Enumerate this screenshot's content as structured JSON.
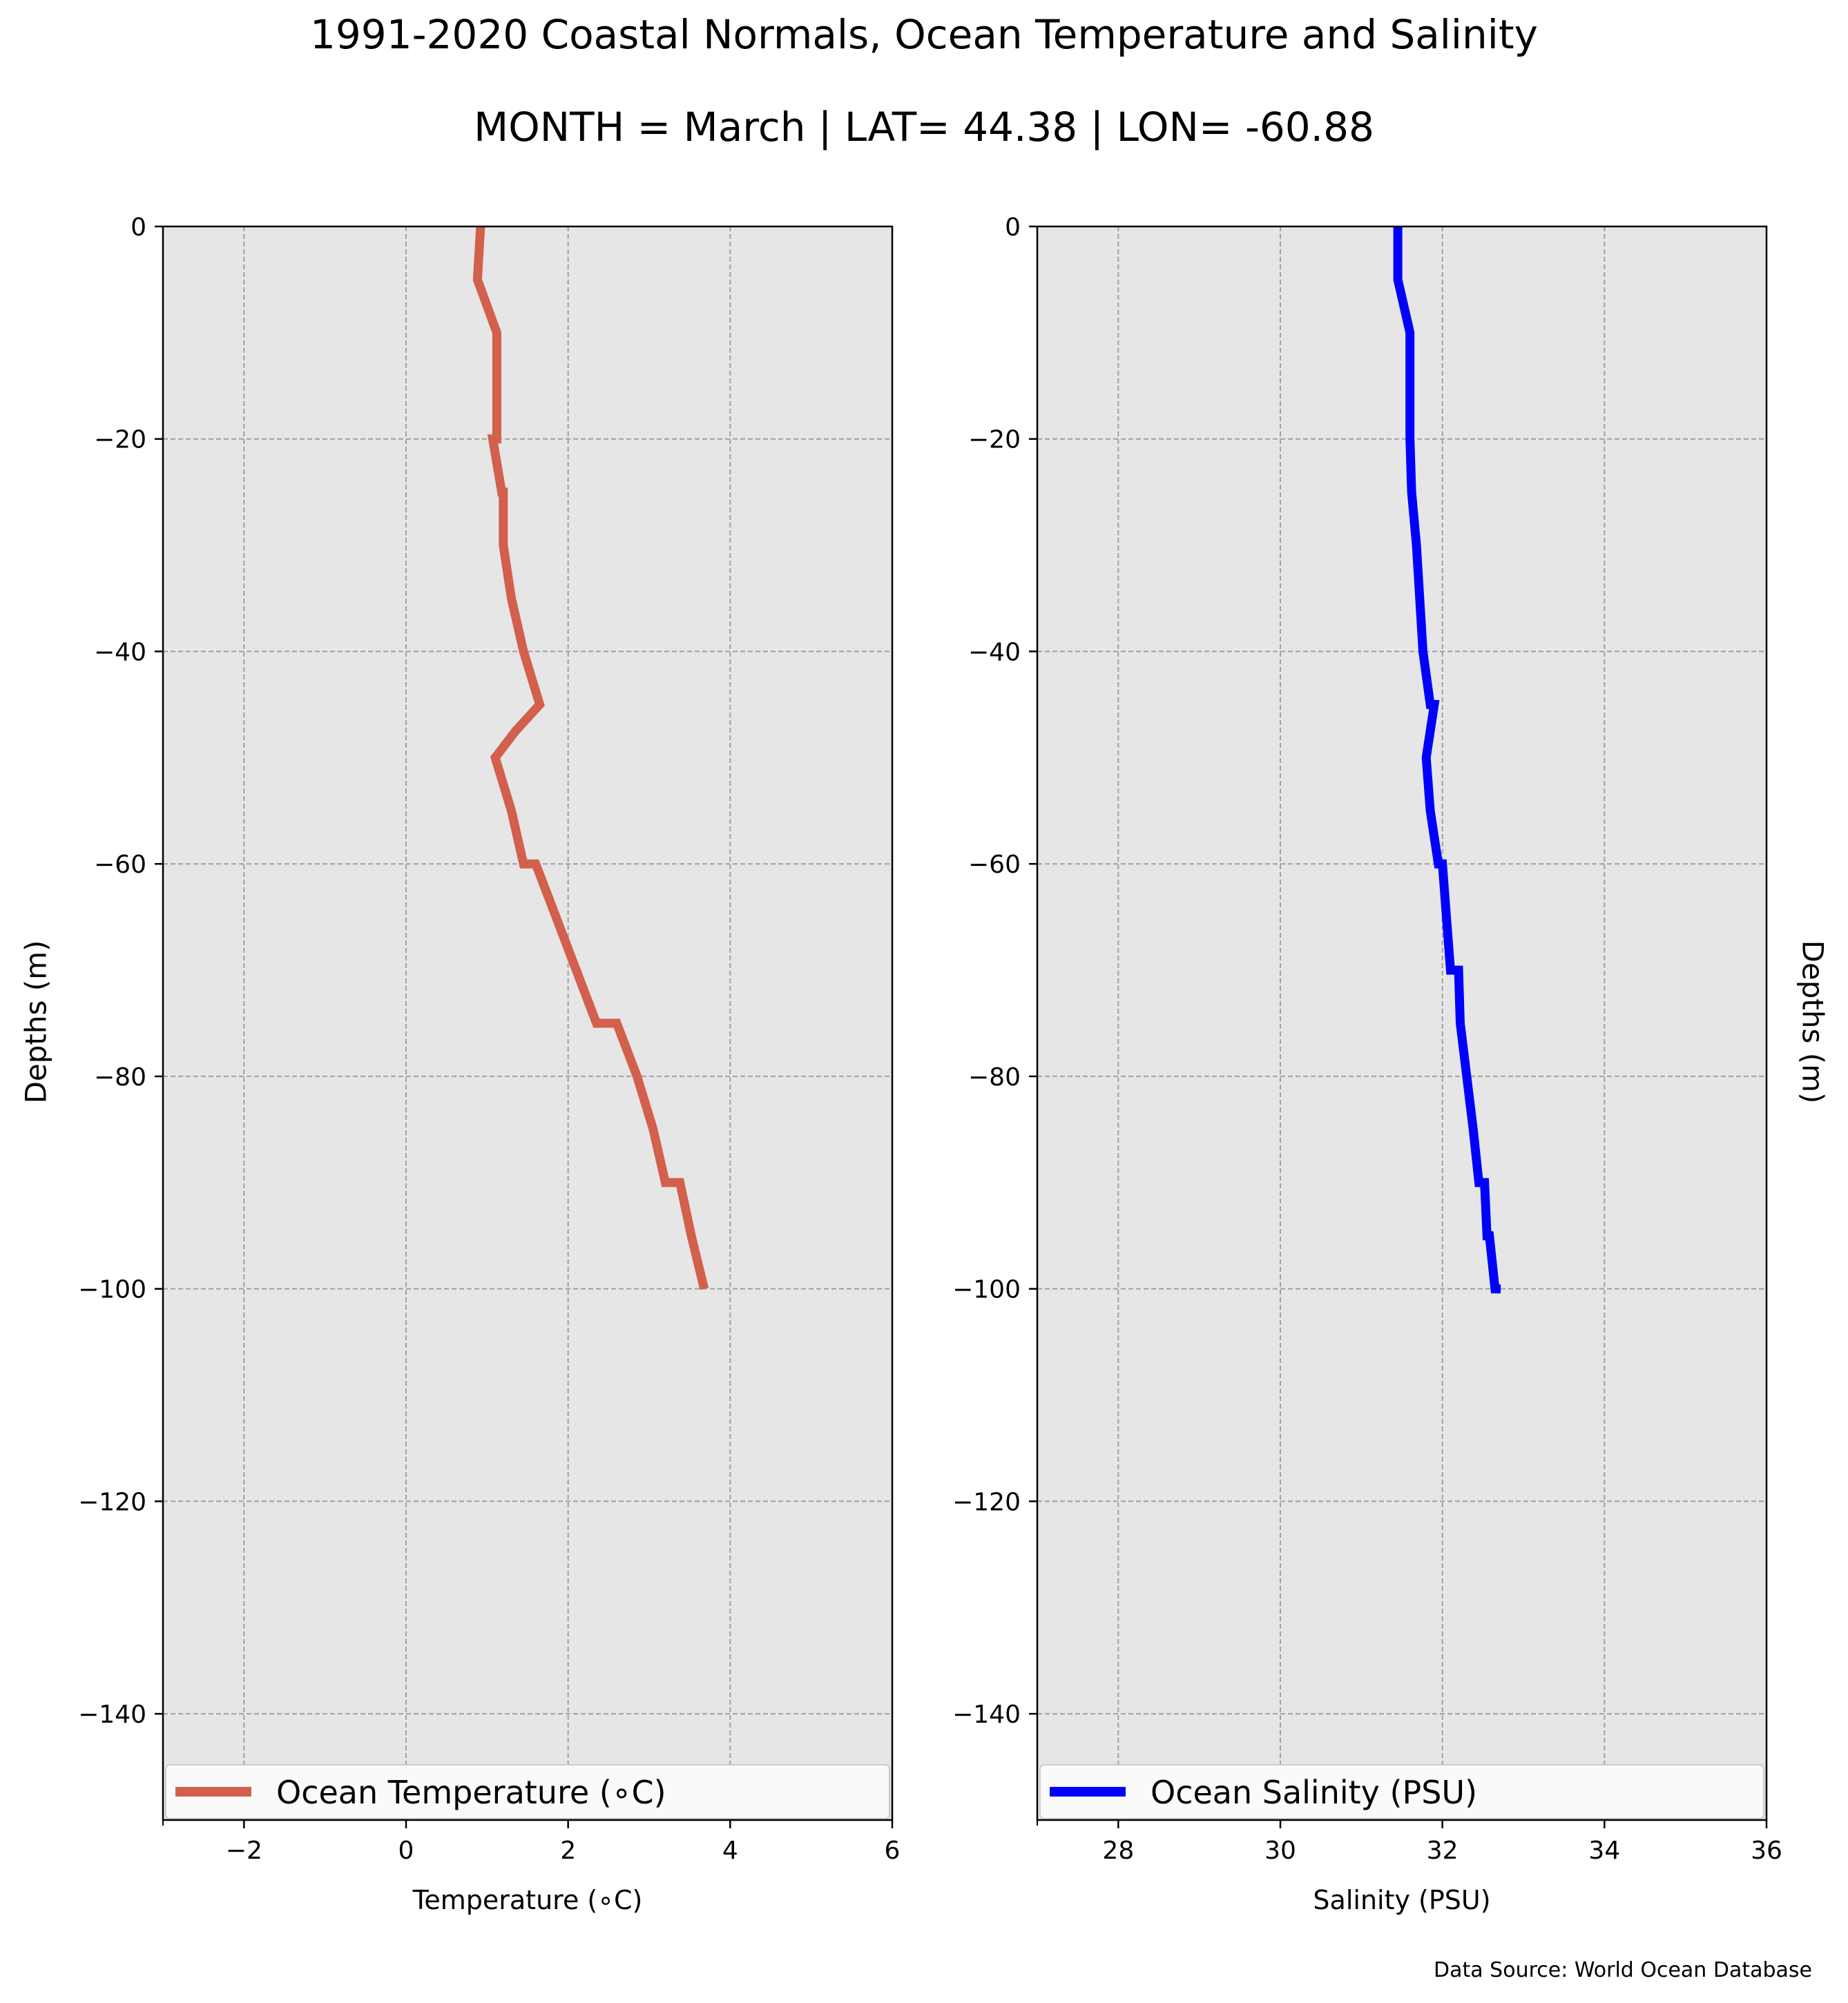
{
  "title": {
    "line1": "1991-2020 Coastal Normals, Ocean Temperature and Salinity",
    "line2": "MONTH = March | LAT= 44.38 | LON= -60.88"
  },
  "ylabel_left": "Depths (m)",
  "ylabel_right": "Depths (m)",
  "source_note": "Data Source: World Ocean Database",
  "colors": {
    "temperature_line": "#d35f4d",
    "salinity_line": "#0000ff",
    "plot_background": "#e6e6e6",
    "grid": "#a0a0a0"
  },
  "chart_data": [
    {
      "type": "line",
      "xlabel": "Temperature ($^\\circ$C)",
      "xlabel_display": "Temperature (∘C)",
      "ylabel": "Depths (m)",
      "xlim": [
        -3,
        6
      ],
      "ylim": [
        -150,
        0
      ],
      "xticks": [
        -2,
        0,
        2,
        4,
        6
      ],
      "xtick_labels": [
        "−2",
        "0",
        "2",
        "4",
        "6"
      ],
      "yticks": [
        0,
        -20,
        -40,
        -60,
        -80,
        -100,
        -120,
        -140
      ],
      "ytick_labels": [
        "0",
        "−20",
        "−40",
        "−60",
        "−80",
        "−100",
        "−120",
        "−140"
      ],
      "grid": true,
      "legend_position": "lower center",
      "series": [
        {
          "name": "Ocean Temperature (∘C)",
          "color": "#d35f4d",
          "x": [
            0.92,
            0.88,
            1.12,
            1.12,
            1.12,
            1.12,
            1.07,
            1.18,
            1.2,
            1.2,
            1.3,
            1.45,
            1.65,
            1.35,
            1.1,
            1.3,
            1.45,
            1.6,
            1.85,
            2.1,
            2.35,
            2.6,
            2.85,
            3.05,
            3.2,
            3.38,
            3.52,
            3.68
          ],
          "y": [
            0,
            -5,
            -10,
            -15,
            -20,
            -20,
            -20,
            -25,
            -25,
            -30,
            -35,
            -40,
            -45,
            -47.5,
            -50,
            -55,
            -60,
            -60,
            -65,
            -70,
            -75,
            -75,
            -80,
            -85,
            -90,
            -90,
            -95,
            -100
          ]
        }
      ]
    },
    {
      "type": "line",
      "xlabel": "Salinity (PSU)",
      "ylabel": "Depths (m)",
      "xlim": [
        27,
        36
      ],
      "ylim": [
        -150,
        0
      ],
      "xticks": [
        28,
        30,
        32,
        34,
        36
      ],
      "xtick_labels": [
        "28",
        "30",
        "32",
        "34",
        "36"
      ],
      "yticks": [
        0,
        -20,
        -40,
        -60,
        -80,
        -100,
        -120,
        -140
      ],
      "ytick_labels": [
        "0",
        "−20",
        "−40",
        "−60",
        "−80",
        "−100",
        "−120",
        "−140"
      ],
      "grid": true,
      "legend_position": "lower center",
      "series": [
        {
          "name": "Ocean Salinity (PSU)",
          "color": "#0000ff",
          "x": [
            31.45,
            31.45,
            31.6,
            31.6,
            31.6,
            31.6,
            31.62,
            31.68,
            31.72,
            31.76,
            31.85,
            31.9,
            31.8,
            31.85,
            31.95,
            32.0,
            32.05,
            32.1,
            32.2,
            32.22,
            32.3,
            32.38,
            32.45,
            32.52,
            32.55,
            32.58,
            32.65,
            32.72
          ],
          "y": [
            0,
            -5,
            -10,
            -15,
            -20,
            -20,
            -25,
            -30,
            -35,
            -40,
            -45,
            -45,
            -50,
            -55,
            -60,
            -60,
            -65,
            -70,
            -70,
            -75,
            -80,
            -85,
            -90,
            -90,
            -95,
            -95,
            -100,
            -100
          ]
        }
      ]
    }
  ]
}
